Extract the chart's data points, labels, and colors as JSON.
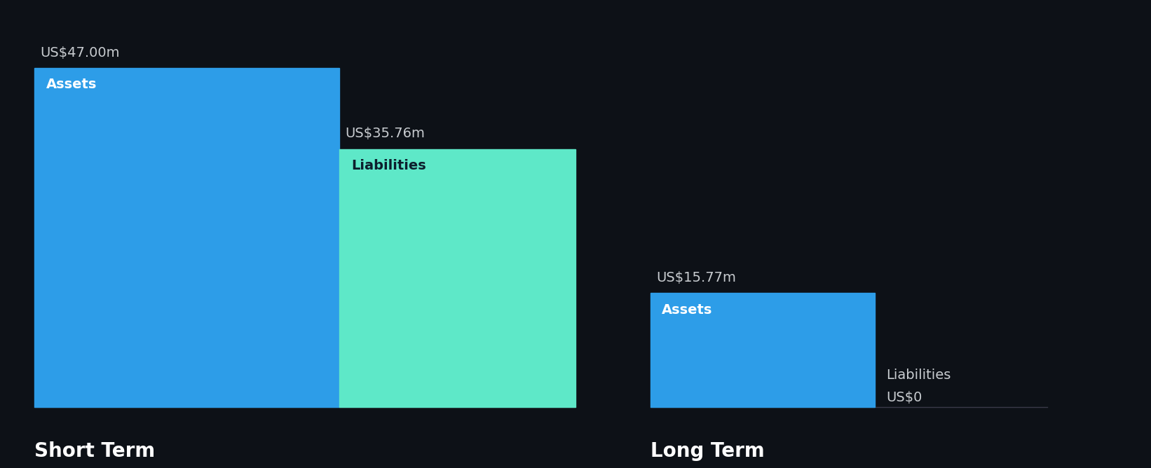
{
  "background_color": "#0d1117",
  "short_term": {
    "assets_value": 47.0,
    "assets_label": "Assets",
    "assets_value_label": "US$47.00m",
    "assets_color": "#2d9de8",
    "liabilities_value": 35.76,
    "liabilities_label": "Liabilities",
    "liabilities_value_label": "US$35.76m",
    "liabilities_color": "#5ee8c8",
    "section_label": "Short Term"
  },
  "long_term": {
    "assets_value": 15.77,
    "assets_label": "Assets",
    "assets_value_label": "US$15.77m",
    "assets_color": "#2d9de8",
    "liabilities_value": 0,
    "liabilities_label": "Liabilities",
    "liabilities_value_label": "US$0",
    "liabilities_color": "#5ee8c8",
    "section_label": "Long Term"
  },
  "value_label_fontsize": 14,
  "bar_label_fontsize": 14,
  "section_label_fontsize": 20,
  "label_color_white": "#ffffff",
  "value_label_color": "#c8ccd0",
  "liabilities_label_color": "#0d1f2d",
  "lt_liab_label_color": "#c8ccd0"
}
